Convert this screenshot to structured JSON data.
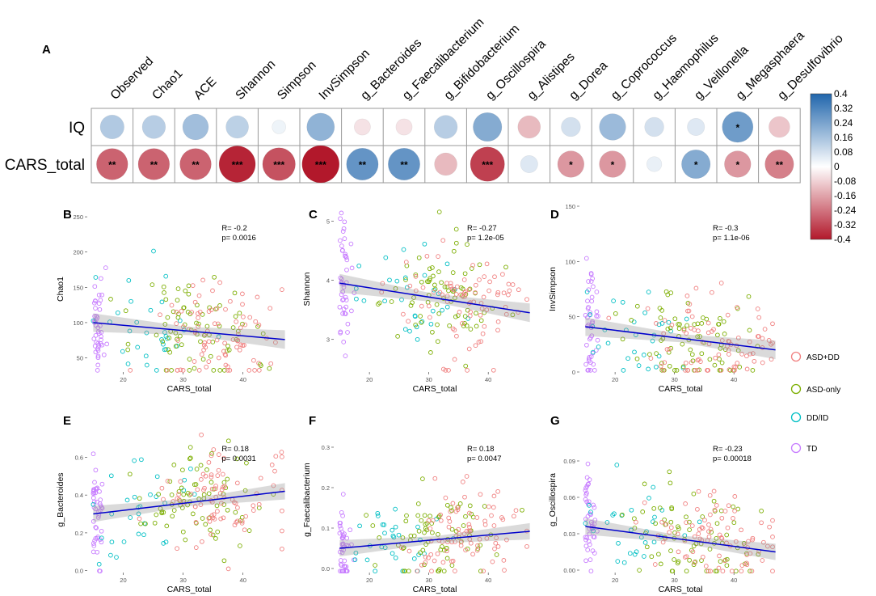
{
  "chart_data": [
    {
      "panel": "A",
      "type": "heatmap",
      "columns": [
        "Observed",
        "Chao1",
        "ACE",
        "Shannon",
        "Simpson",
        "InvSimpson",
        "g_Bacteroides",
        "g_Faecalibacterium",
        "g_Bifidobacterium",
        "g_Oscillospira",
        "g_Alistipes",
        "g_Dorea",
        "g_Coprococcus",
        "g_Haemophilus",
        "g_Veillonella",
        "g_Megasphaera",
        "g_Desulfovibrio"
      ],
      "rows": [
        {
          "name": "IQ",
          "values": [
            0.14,
            0.13,
            0.17,
            0.12,
            0.03,
            0.2,
            -0.05,
            -0.05,
            0.13,
            0.22,
            -0.12,
            0.08,
            0.18,
            0.08,
            0.06,
            0.26,
            -0.1
          ],
          "stars": [
            "",
            "",
            "",
            "",
            "",
            "",
            "",
            "",
            "",
            "",
            "",
            "",
            "",
            "",
            "",
            "*",
            ""
          ]
        },
        {
          "name": "CARS_total",
          "values": [
            -0.27,
            -0.27,
            -0.27,
            -0.38,
            -0.3,
            -0.4,
            0.28,
            0.28,
            -0.12,
            -0.33,
            0.06,
            -0.18,
            -0.18,
            0.04,
            0.22,
            -0.18,
            -0.22
          ],
          "stars": [
            "**",
            "**",
            "**",
            "***",
            "***",
            "***",
            "**",
            "**",
            "",
            "***",
            "",
            "*",
            "*",
            "",
            "*",
            "*",
            "**"
          ]
        }
      ],
      "colorbar": {
        "range": [
          -0.4,
          0.4
        ],
        "ticks": [
          "0.4",
          "0.32",
          "0.24",
          "0.16",
          "0.08",
          "0",
          "-0.08",
          "-0.16",
          "-0.24",
          "-0.32",
          "-0.4"
        ],
        "negative_color": "#B2182B",
        "positive_color": "#2166AC"
      }
    },
    {
      "panel": "B",
      "type": "scatter",
      "xlabel": "CARS_total",
      "ylabel": "Chao1",
      "xlim": [
        14,
        48
      ],
      "ylim": [
        30,
        265
      ],
      "xticks": [
        20,
        30,
        40
      ],
      "yticks": [
        50,
        100,
        150,
        200,
        250
      ],
      "r": "R= -0.2",
      "p": "p= 0.0016",
      "fit": [
        100.0,
        76.0
      ],
      "seed": 11
    },
    {
      "panel": "C",
      "type": "scatter",
      "xlabel": "CARS_total",
      "ylabel": "Shannon",
      "xlim": [
        14,
        48
      ],
      "ylim": [
        2.45,
        5.25
      ],
      "xticks": [
        20,
        30,
        40
      ],
      "yticks": [
        3,
        4,
        5
      ],
      "r": "R= -0.27",
      "p": "p= 1.2e-05",
      "fit": [
        3.95,
        3.45
      ],
      "seed": 23
    },
    {
      "panel": "D",
      "type": "scatter",
      "xlabel": "CARS_total",
      "ylabel": "InvSimpson",
      "xlim": [
        14,
        48
      ],
      "ylim": [
        0,
        150
      ],
      "xticks": [
        20,
        30,
        40
      ],
      "yticks": [
        0,
        50,
        100,
        150
      ],
      "r": "R= -0.3",
      "p": "p= 1.1e-06",
      "fit": [
        41.0,
        20.0
      ],
      "seed": 37
    },
    {
      "panel": "E",
      "type": "scatter",
      "xlabel": "CARS_total",
      "ylabel": "g_Bacteroides",
      "xlim": [
        14,
        48
      ],
      "ylim": [
        -0.01,
        0.76
      ],
      "xticks": [
        20,
        30,
        40
      ],
      "yticks": [
        0.0,
        0.2,
        0.4,
        0.6
      ],
      "r": "R= 0.18",
      "p": "p= 0.0031",
      "fit": [
        0.3,
        0.42
      ],
      "seed": 41
    },
    {
      "panel": "F",
      "type": "scatter",
      "xlabel": "CARS_total",
      "ylabel": "g_Faecalibacterium",
      "xlim": [
        14,
        48
      ],
      "ylim": [
        -0.01,
        0.35
      ],
      "xticks": [
        20,
        30,
        40
      ],
      "yticks": [
        0.0,
        0.1,
        0.2,
        0.3
      ],
      "r": "R= 0.18",
      "p": "p= 0.0047",
      "fit": [
        0.05,
        0.092
      ],
      "seed": 53
    },
    {
      "panel": "G",
      "type": "scatter",
      "xlabel": "CARS_total",
      "ylabel": "g_Oscillospira",
      "xlim": [
        14,
        48
      ],
      "ylim": [
        -0.002,
        0.118
      ],
      "xticks": [
        20,
        30,
        40
      ],
      "yticks": [
        0.0,
        0.03,
        0.06,
        0.09
      ],
      "r": "R= -0.23",
      "p": "p= 0.00018",
      "fit": [
        0.036,
        0.015
      ],
      "seed": 67
    }
  ],
  "tick_labels": {
    "x": [
      "20",
      "30",
      "40"
    ],
    "B": [
      "50",
      "100",
      "150",
      "200",
      "250"
    ],
    "C": [
      "3",
      "4",
      "5"
    ],
    "D": [
      "0",
      "50",
      "100",
      "150"
    ],
    "E": [
      "0.0",
      "0.2",
      "0.4",
      "0.6"
    ],
    "F": [
      "0.0",
      "0.1",
      "0.2",
      "0.3"
    ],
    "G": [
      "0.00",
      "0.03",
      "0.06",
      "0.09"
    ]
  },
  "legend": {
    "items": [
      {
        "label": "ASD+DD",
        "color": "#F08080"
      },
      {
        "label": "ASD-only",
        "color": "#7CAE00"
      },
      {
        "label": "DD/ID",
        "color": "#00BFC4"
      },
      {
        "label": "TD",
        "color": "#C77CFF"
      }
    ]
  },
  "fit_color": "#0000CC"
}
